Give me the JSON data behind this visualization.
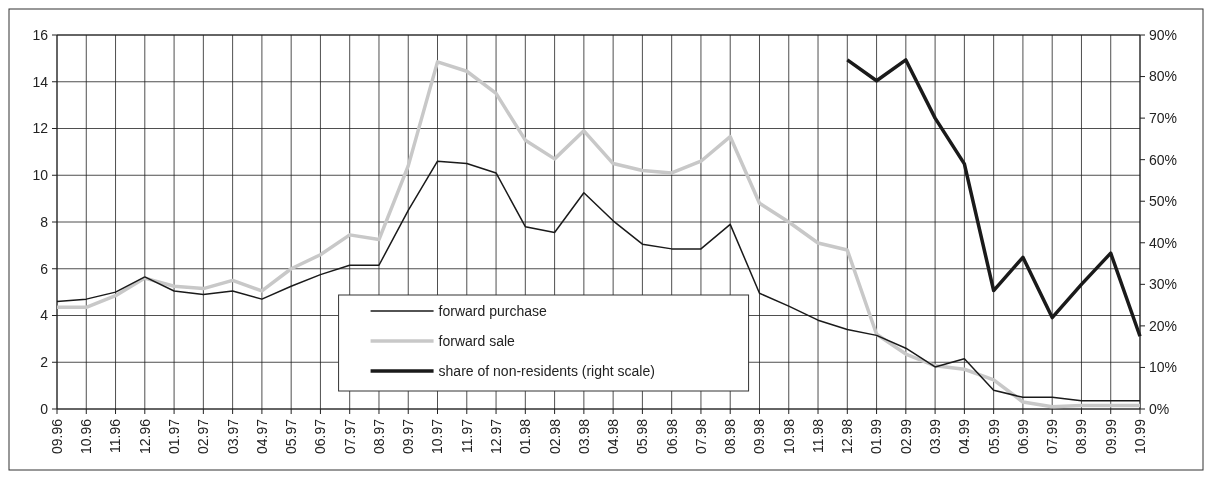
{
  "chart_data": {
    "type": "line",
    "categories": [
      "09.96",
      "10.96",
      "11.96",
      "12.96",
      "01.97",
      "02.97",
      "03.97",
      "04.97",
      "05.97",
      "06.97",
      "07.97",
      "08.97",
      "09.97",
      "10.97",
      "11.97",
      "12.97",
      "01.98",
      "02.98",
      "03.98",
      "04.98",
      "05.98",
      "06.98",
      "07.98",
      "08.98",
      "09.98",
      "10.98",
      "11.98",
      "12.98",
      "01.99",
      "02.99",
      "03.99",
      "04.99",
      "05.99",
      "06.99",
      "07.99",
      "08.99",
      "09.99",
      "10.99"
    ],
    "series": [
      {
        "name": "forward purchase",
        "color": "#1a1a1a",
        "values": [
          4.6,
          4.7,
          5.0,
          5.65,
          5.05,
          4.9,
          5.05,
          4.7,
          5.25,
          5.75,
          6.15,
          6.15,
          8.5,
          10.6,
          10.5,
          10.1,
          7.8,
          7.55,
          9.25,
          8.05,
          7.05,
          6.85,
          6.85,
          7.9,
          4.95,
          4.4,
          3.8,
          3.4,
          3.15,
          2.6,
          1.8,
          2.15,
          0.8,
          0.5,
          0.5,
          0.35,
          0.35,
          0.35
        ]
      },
      {
        "name": "forward sale",
        "color": "#c8c8c8",
        "values": [
          4.35,
          4.35,
          4.85,
          5.6,
          5.25,
          5.15,
          5.5,
          5.05,
          6.0,
          6.6,
          7.45,
          7.25,
          10.4,
          14.85,
          14.45,
          13.5,
          11.5,
          10.7,
          11.9,
          10.5,
          10.2,
          10.1,
          10.6,
          11.65,
          8.8,
          8.0,
          7.1,
          6.8,
          3.2,
          2.35,
          1.85,
          1.7,
          1.25,
          0.3,
          0.1,
          0.15,
          0.15,
          0.15
        ]
      },
      {
        "name": "share of non-residents (right scale)",
        "color": "#1a1a1a",
        "axis": "y2",
        "values": [
          null,
          null,
          null,
          null,
          null,
          null,
          null,
          null,
          null,
          null,
          null,
          null,
          null,
          null,
          null,
          null,
          null,
          null,
          null,
          null,
          null,
          null,
          null,
          null,
          null,
          null,
          null,
          84,
          79,
          84,
          70,
          59,
          28.5,
          36.5,
          22,
          30,
          37.5,
          17.5
        ]
      }
    ],
    "ylim": [
      0,
      16
    ],
    "yticks": [
      0,
      2,
      4,
      6,
      8,
      10,
      12,
      14,
      16
    ],
    "y2lim": [
      0,
      90
    ],
    "y2ticks": [
      {
        "value": 0,
        "label": "0%"
      },
      {
        "value": 10,
        "label": "10%"
      },
      {
        "value": 20,
        "label": "20%"
      },
      {
        "value": 30,
        "label": "30%"
      },
      {
        "value": 40,
        "label": "40%"
      },
      {
        "value": 50,
        "label": "50%"
      },
      {
        "value": 60,
        "label": "60%"
      },
      {
        "value": 70,
        "label": "70%"
      },
      {
        "value": 80,
        "label": "80%"
      },
      {
        "value": 90,
        "label": "90%"
      }
    ],
    "grid": true,
    "legend": "bottom"
  }
}
